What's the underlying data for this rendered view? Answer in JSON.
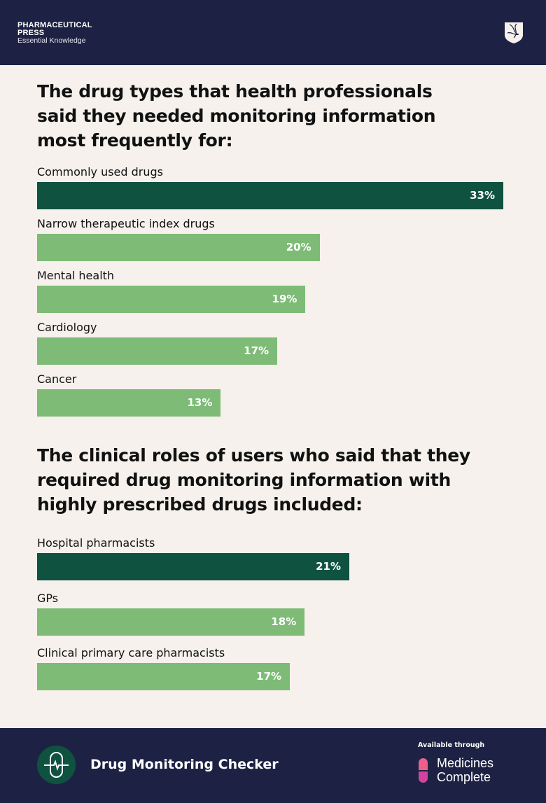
{
  "header": {
    "brand_line1": "PHARMACEUTICAL",
    "brand_line2": "PRESS",
    "tagline": "Essential Knowledge",
    "logo_icon": "shield-icon"
  },
  "colors": {
    "highlight": "#0f5240",
    "bar": "#7dbb76",
    "navy": "#1d2244",
    "background": "#f6f1ec"
  },
  "chart_data": [
    {
      "type": "bar",
      "orientation": "horizontal",
      "title": "The drug types that health professionals said they needed monitoring information most frequently for:",
      "categories": [
        "Commonly used drugs",
        "Narrow therapeutic index drugs",
        "Mental health",
        "Cardiology",
        "Cancer"
      ],
      "values": [
        33,
        20,
        19,
        17,
        13
      ],
      "labels": [
        "33%",
        "20%",
        "19%",
        "17%",
        "13%"
      ],
      "highlighted": [
        0
      ],
      "xlim": [
        0,
        33
      ],
      "grid": false
    },
    {
      "type": "bar",
      "orientation": "horizontal",
      "title": "The clinical roles of users who said that they required drug monitoring information with highly prescribed drugs included:",
      "categories": [
        "Hospital pharmacists",
        "GPs",
        "Clinical primary care pharmacists"
      ],
      "values": [
        21,
        18,
        17
      ],
      "labels": [
        "21%",
        "18%",
        "17%"
      ],
      "highlighted": [
        0
      ],
      "xlim": [
        0,
        21
      ],
      "grid": false
    }
  ],
  "footer": {
    "product": "Drug Monitoring Checker",
    "product_icon": "heartbeat-capsule-icon",
    "available": "Available through",
    "partner_line1": "Medicines",
    "partner_line2": "Complete",
    "partner_icon": "capsule-icon"
  }
}
